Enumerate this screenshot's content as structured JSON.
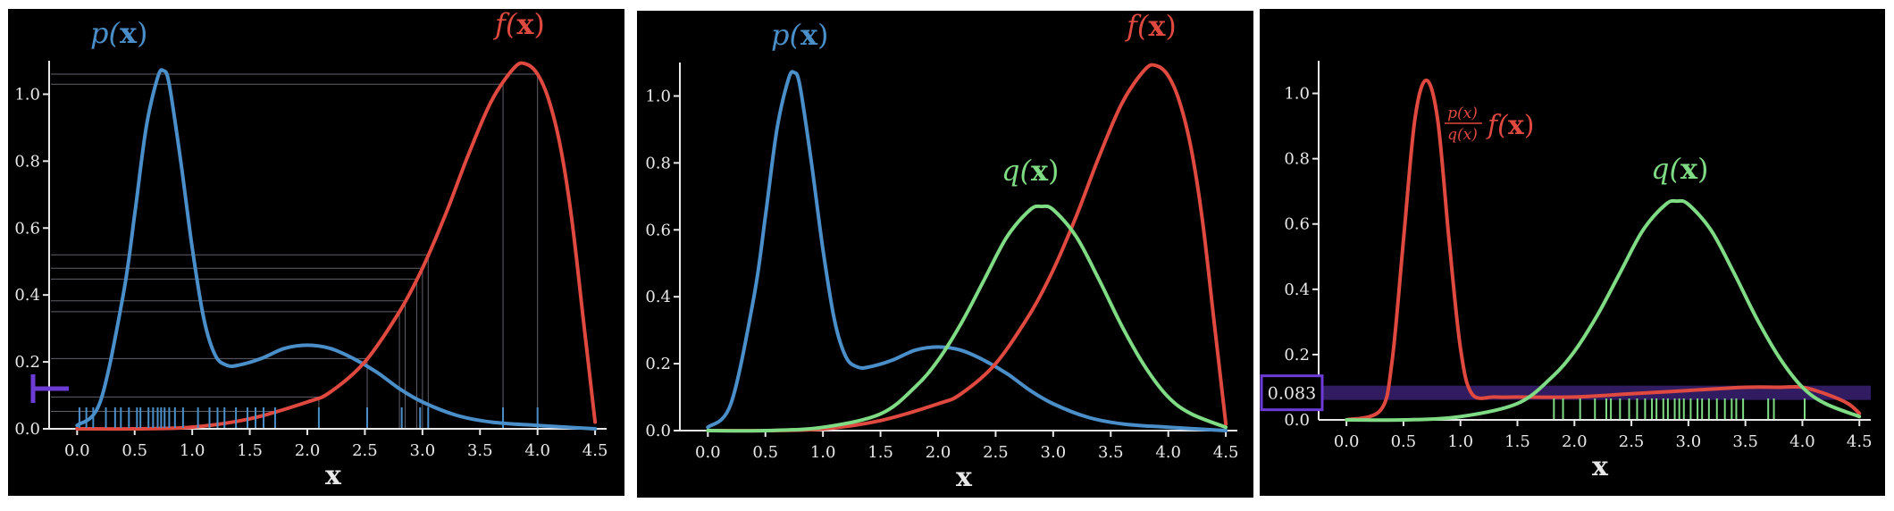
{
  "colors": {
    "p": "#4a8fc9",
    "f": "#e0493f",
    "q": "#7fdc84",
    "highlight": "#6d3cd6",
    "axis": "#e8e8e8",
    "background": "#000000"
  },
  "chart_data": [
    {
      "type": "line",
      "panel": "samples-from-p",
      "title": "",
      "xlabel": "x",
      "ylabel": "",
      "xlim": [
        -0.15,
        4.6
      ],
      "ylim": [
        0,
        1.1
      ],
      "xticks": [
        0.0,
        0.5,
        1.0,
        1.5,
        2.0,
        2.5,
        3.0,
        3.5,
        4.0,
        4.5
      ],
      "xtick_labels": [
        "0.0",
        "0.5",
        "1.0",
        "1.5",
        "2.0",
        "2.5",
        "3.0",
        "3.5",
        "4.0",
        "4.5"
      ],
      "yticks": [
        0.0,
        0.2,
        0.4,
        0.6,
        0.8,
        1.0
      ],
      "ytick_labels": [
        "0.0",
        "0.2",
        "0.4",
        "0.6",
        "0.8",
        "1.0"
      ],
      "series": [
        {
          "name": "p(x)",
          "color": "#4a8fc9",
          "label_parts": [
            "p(",
            "x",
            ")"
          ],
          "x": [
            0.0,
            0.2,
            0.4,
            0.5,
            0.6,
            0.7,
            0.75,
            0.8,
            0.9,
            1.0,
            1.1,
            1.2,
            1.3,
            1.4,
            1.6,
            1.8,
            2.0,
            2.2,
            2.4,
            2.6,
            2.8,
            3.0,
            3.3,
            3.6,
            4.0,
            4.5
          ],
          "y": [
            0.01,
            0.08,
            0.4,
            0.64,
            0.9,
            1.05,
            1.07,
            1.03,
            0.8,
            0.54,
            0.33,
            0.22,
            0.19,
            0.19,
            0.21,
            0.24,
            0.25,
            0.24,
            0.21,
            0.17,
            0.12,
            0.08,
            0.04,
            0.02,
            0.01,
            0.0
          ]
        },
        {
          "name": "f(x)",
          "color": "#e0493f",
          "label_parts": [
            "f(",
            "x",
            ")"
          ],
          "x": [
            0.0,
            0.5,
            1.0,
            1.5,
            2.0,
            2.2,
            2.5,
            2.8,
            3.0,
            3.2,
            3.4,
            3.6,
            3.8,
            3.9,
            4.0,
            4.1,
            4.2,
            4.3,
            4.4,
            4.5
          ],
          "y": [
            0.0,
            0.0,
            0.005,
            0.03,
            0.08,
            0.11,
            0.2,
            0.35,
            0.48,
            0.64,
            0.82,
            0.98,
            1.08,
            1.09,
            1.06,
            0.98,
            0.84,
            0.62,
            0.32,
            0.02
          ]
        }
      ],
      "samples": [
        0.02,
        0.08,
        0.14,
        0.25,
        0.33,
        0.38,
        0.45,
        0.52,
        0.55,
        0.62,
        0.66,
        0.7,
        0.73,
        0.76,
        0.8,
        0.85,
        0.92,
        1.05,
        1.15,
        1.22,
        1.28,
        1.38,
        1.48,
        1.55,
        1.62,
        1.72,
        2.1,
        2.52,
        2.82,
        2.98,
        3.05,
        3.7,
        4.0
      ],
      "f_sample_lines": [
        3.7,
        4.0,
        3.05,
        3.0,
        2.95,
        2.85,
        2.8,
        2.52,
        2.1,
        1.72
      ],
      "mean_marker": 0.12
    },
    {
      "type": "line",
      "panel": "three-densities",
      "title": "",
      "xlabel": "x",
      "ylabel": "",
      "xlim": [
        -0.15,
        4.6
      ],
      "ylim": [
        0,
        1.1
      ],
      "xticks": [
        0.0,
        0.5,
        1.0,
        1.5,
        2.0,
        2.5,
        3.0,
        3.5,
        4.0,
        4.5
      ],
      "xtick_labels": [
        "0.0",
        "0.5",
        "1.0",
        "1.5",
        "2.0",
        "2.5",
        "3.0",
        "3.5",
        "4.0",
        "4.5"
      ],
      "yticks": [
        0.0,
        0.2,
        0.4,
        0.6,
        0.8,
        1.0
      ],
      "ytick_labels": [
        "0.0",
        "0.2",
        "0.4",
        "0.6",
        "0.8",
        "1.0"
      ],
      "series": [
        {
          "name": "p(x)",
          "color": "#4a8fc9",
          "label_parts": [
            "p(",
            "x",
            ")"
          ],
          "x": [
            0.0,
            0.2,
            0.4,
            0.5,
            0.6,
            0.7,
            0.75,
            0.8,
            0.9,
            1.0,
            1.1,
            1.2,
            1.3,
            1.4,
            1.6,
            1.8,
            2.0,
            2.2,
            2.4,
            2.6,
            2.8,
            3.0,
            3.3,
            3.6,
            4.0,
            4.5
          ],
          "y": [
            0.01,
            0.08,
            0.4,
            0.64,
            0.9,
            1.05,
            1.07,
            1.03,
            0.8,
            0.54,
            0.33,
            0.22,
            0.19,
            0.19,
            0.21,
            0.24,
            0.25,
            0.24,
            0.21,
            0.17,
            0.12,
            0.08,
            0.04,
            0.02,
            0.01,
            0.0
          ]
        },
        {
          "name": "f(x)",
          "color": "#e0493f",
          "label_parts": [
            "f(",
            "x",
            ")"
          ],
          "x": [
            0.0,
            0.5,
            1.0,
            1.5,
            2.0,
            2.2,
            2.5,
            2.8,
            3.0,
            3.2,
            3.4,
            3.6,
            3.8,
            3.9,
            4.0,
            4.1,
            4.2,
            4.3,
            4.4,
            4.5
          ],
          "y": [
            0.0,
            0.0,
            0.005,
            0.03,
            0.08,
            0.11,
            0.2,
            0.35,
            0.48,
            0.64,
            0.82,
            0.98,
            1.08,
            1.09,
            1.06,
            0.98,
            0.84,
            0.62,
            0.32,
            0.02
          ]
        },
        {
          "name": "q(x)",
          "color": "#7fdc84",
          "label_parts": [
            "q(",
            "x",
            ")"
          ],
          "x": [
            0.0,
            0.5,
            1.0,
            1.5,
            1.8,
            2.0,
            2.2,
            2.4,
            2.6,
            2.8,
            2.9,
            3.0,
            3.2,
            3.4,
            3.6,
            3.8,
            4.0,
            4.2,
            4.5
          ],
          "y": [
            0.0,
            0.0,
            0.01,
            0.05,
            0.13,
            0.21,
            0.32,
            0.45,
            0.58,
            0.66,
            0.67,
            0.66,
            0.58,
            0.45,
            0.31,
            0.19,
            0.1,
            0.05,
            0.01
          ]
        }
      ]
    },
    {
      "type": "line",
      "panel": "importance-weighted",
      "title": "",
      "xlabel": "x",
      "ylabel": "",
      "xlim": [
        -0.15,
        4.6
      ],
      "ylim": [
        0,
        1.1
      ],
      "xticks": [
        0.0,
        0.5,
        1.0,
        1.5,
        2.0,
        2.5,
        3.0,
        3.5,
        4.0,
        4.5
      ],
      "xtick_labels": [
        "0.0",
        "0.5",
        "1.0",
        "1.5",
        "2.0",
        "2.5",
        "3.0",
        "3.5",
        "4.0",
        "4.5"
      ],
      "yticks": [
        0.2,
        0.4,
        0.6,
        0.8,
        1.0
      ],
      "ytick_labels": [
        "0.2",
        "0.4",
        "0.6",
        "0.8",
        "1.0"
      ],
      "zero_label": "0.0",
      "series": [
        {
          "name": "p(x)/q(x) f(x)",
          "color": "#e0493f",
          "label_parts": [
            "p(x)",
            "q(x)",
            "f(",
            "x",
            ")"
          ],
          "x": [
            0.0,
            0.3,
            0.4,
            0.5,
            0.6,
            0.7,
            0.8,
            0.9,
            1.0,
            1.1,
            1.3,
            1.5,
            2.0,
            2.5,
            3.0,
            3.5,
            3.8,
            4.0,
            4.2,
            4.4,
            4.5
          ],
          "y": [
            0.0,
            0.03,
            0.18,
            0.55,
            0.92,
            1.04,
            0.92,
            0.55,
            0.22,
            0.08,
            0.07,
            0.07,
            0.07,
            0.08,
            0.09,
            0.1,
            0.1,
            0.1,
            0.08,
            0.05,
            0.02
          ]
        },
        {
          "name": "q(x)",
          "color": "#7fdc84",
          "label_parts": [
            "q(",
            "x",
            ")"
          ],
          "x": [
            0.0,
            0.5,
            1.0,
            1.5,
            1.8,
            2.0,
            2.2,
            2.4,
            2.6,
            2.8,
            2.9,
            3.0,
            3.2,
            3.4,
            3.6,
            3.8,
            4.0,
            4.2,
            4.5
          ],
          "y": [
            0.0,
            0.0,
            0.01,
            0.05,
            0.13,
            0.21,
            0.32,
            0.45,
            0.58,
            0.66,
            0.67,
            0.66,
            0.58,
            0.45,
            0.31,
            0.19,
            0.1,
            0.05,
            0.01
          ]
        }
      ],
      "samples": [
        1.82,
        1.9,
        2.05,
        2.18,
        2.28,
        2.32,
        2.4,
        2.48,
        2.55,
        2.62,
        2.68,
        2.72,
        2.78,
        2.82,
        2.88,
        2.92,
        2.96,
        3.02,
        3.08,
        3.12,
        3.18,
        3.25,
        3.32,
        3.38,
        3.42,
        3.48,
        3.7,
        3.75,
        4.02
      ],
      "estimate_value": 0.083,
      "estimate_label": "0.083"
    }
  ]
}
